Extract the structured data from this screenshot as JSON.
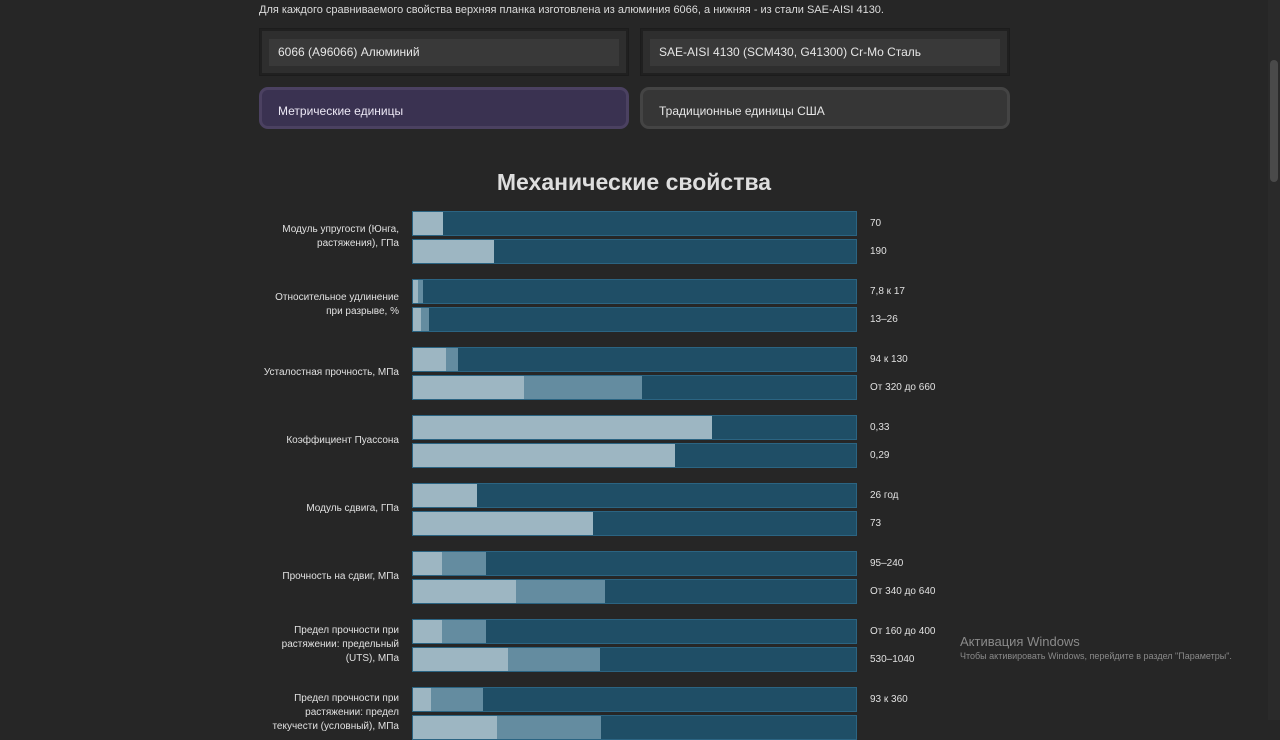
{
  "intro_text": "Для каждого сравниваемого свойства верхняя планка изготовлена из алюминия 6066, а нижняя - из стали SAE-AISI 4130.",
  "materials": {
    "top": "6066 (A96066) Алюминий",
    "bottom": "SAE-AISI 4130 (SCM430, G41300) Cr-Mo Сталь"
  },
  "units": {
    "metric": "Метрические единицы",
    "us": "Традиционные единицы США"
  },
  "section_title": "Механические свойства",
  "properties": [
    {
      "label": "Модуль упругости (Юнга, растяжения), ГПа",
      "top": {
        "value": "70",
        "base": 0.068,
        "max": 0.068
      },
      "bottom": {
        "value": "190",
        "base": 0.182,
        "max": 0.182
      }
    },
    {
      "label": "Относительное удлинение при разрыве, %",
      "top": {
        "value": "7,8 к 17",
        "base": 0.011,
        "max": 0.022
      },
      "bottom": {
        "value": "13–26",
        "base": 0.017,
        "max": 0.034
      }
    },
    {
      "label": "Усталостная прочность, МПа",
      "top": {
        "value": "94 к 130",
        "base": 0.074,
        "max": 0.101
      },
      "bottom": {
        "value": "От 320 до 660",
        "base": 0.25,
        "max": 0.517
      }
    },
    {
      "label": "Коэффициент Пуассона",
      "top": {
        "value": "0,33",
        "base": 0.674,
        "max": 0.674
      },
      "bottom": {
        "value": "0,29",
        "base": 0.591,
        "max": 0.591
      }
    },
    {
      "label": "Модуль сдвига, ГПа",
      "top": {
        "value": "26 год",
        "base": 0.144,
        "max": 0.144
      },
      "bottom": {
        "value": "73",
        "base": 0.406,
        "max": 0.406
      }
    },
    {
      "label": "Прочность на сдвиг, МПа",
      "top": {
        "value": "95–240",
        "base": 0.065,
        "max": 0.164
      },
      "bottom": {
        "value": "От 340 до 640",
        "base": 0.232,
        "max": 0.434
      }
    },
    {
      "label": "Предел прочности при растяжении: предельный (UTS), МПа",
      "top": {
        "value": "От 160 до 400",
        "base": 0.065,
        "max": 0.164
      },
      "bottom": {
        "value": "530–1040",
        "base": 0.215,
        "max": 0.422
      }
    },
    {
      "label": "Предел прочности при растяжении: предел текучести (условный), МПа",
      "top": {
        "value": "93 к 360",
        "base": 0.04,
        "max": 0.157
      },
      "bottom": {
        "value": "",
        "base": 0.19,
        "max": 0.425
      }
    }
  ],
  "watermark": {
    "title": "Активация Windows",
    "subtitle": "Чтобы активировать Windows, перейдите в раздел \"Параметры\"."
  }
}
